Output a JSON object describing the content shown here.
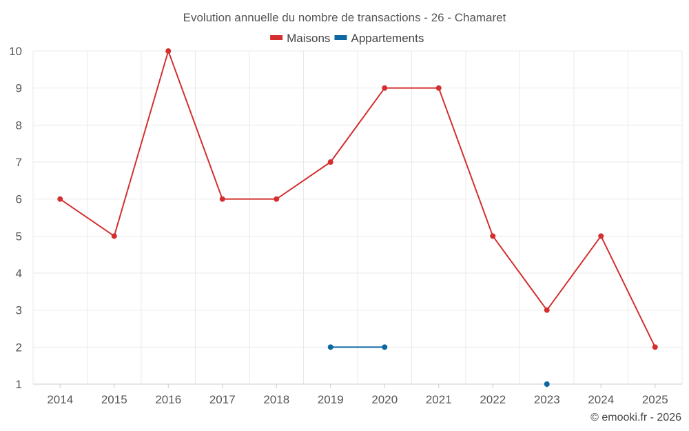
{
  "chart_data": {
    "type": "line",
    "title": "Evolution annuelle du nombre de transactions - 26 - Chamaret",
    "categories": [
      "2014",
      "2015",
      "2016",
      "2017",
      "2018",
      "2019",
      "2020",
      "2021",
      "2022",
      "2023",
      "2024",
      "2025"
    ],
    "series": [
      {
        "name": "Maisons",
        "color": "#d32f2f",
        "values": [
          6,
          5,
          10,
          6,
          6,
          7,
          9,
          9,
          5,
          3,
          5,
          2
        ]
      },
      {
        "name": "Appartements",
        "color": "#0d67a3",
        "values": [
          null,
          null,
          null,
          null,
          null,
          2,
          2,
          null,
          null,
          1,
          null,
          null
        ]
      }
    ],
    "ylim": [
      1,
      10
    ],
    "yticks": [
      "1",
      "2",
      "3",
      "4",
      "5",
      "6",
      "7",
      "8",
      "9",
      "10"
    ],
    "xlabel": "",
    "ylabel": "",
    "grid": true,
    "legend_position": "top-center"
  },
  "credit": "© emooki.fr - 2026"
}
